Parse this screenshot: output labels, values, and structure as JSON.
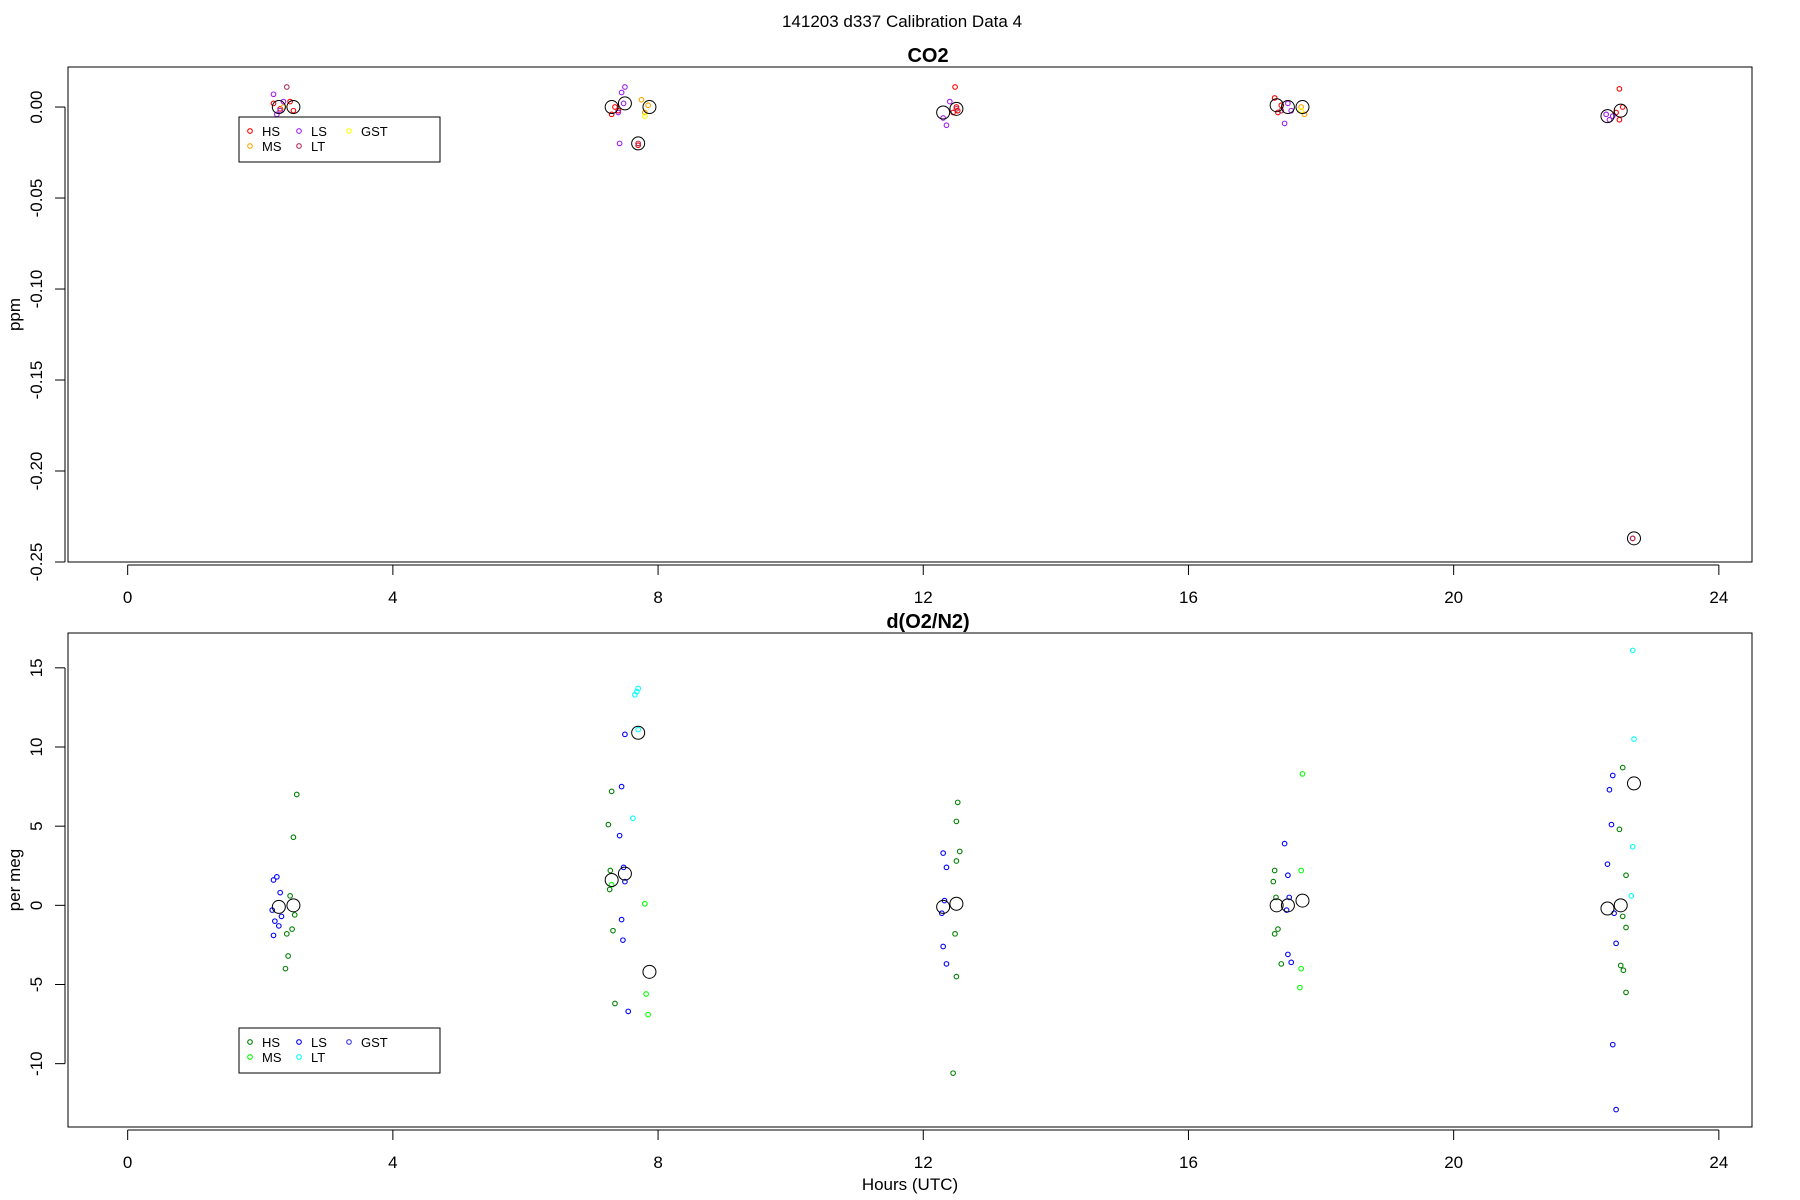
{
  "figure": {
    "suptitle": "141203   d337   Calibration Data 4"
  },
  "chart_data": [
    {
      "type": "scatter",
      "title": "CO2",
      "xlabel": "",
      "ylabel": "ppm",
      "xlim": [
        -0.9,
        24.5
      ],
      "ylim": [
        -0.25,
        0.022
      ],
      "xticks": [
        0,
        4,
        8,
        12,
        16,
        20,
        24
      ],
      "yticks": [
        0.0,
        -0.05,
        -0.1,
        -0.15,
        -0.2,
        -0.25
      ],
      "ytick_labels": [
        "0.00",
        "-0.05",
        "-0.10",
        "-0.15",
        "-0.20",
        "-0.25"
      ],
      "grid": false,
      "legend_position": "top-left",
      "series": [
        {
          "name": "HS",
          "color": "#ff0000",
          "points": [
            [
              2.2,
              0.002
            ],
            [
              2.3,
              -0.001
            ],
            [
              2.5,
              -0.002
            ],
            [
              2.45,
              0.003
            ],
            [
              7.3,
              -0.004
            ],
            [
              7.35,
              0.0
            ],
            [
              7.4,
              -0.002
            ],
            [
              7.7,
              -0.021
            ],
            [
              12.45,
              -0.003
            ],
            [
              12.5,
              0.0
            ],
            [
              12.52,
              -0.002
            ],
            [
              12.48,
              0.011
            ],
            [
              17.3,
              0.005
            ],
            [
              17.35,
              -0.003
            ],
            [
              17.4,
              0.001
            ],
            [
              22.45,
              -0.003
            ],
            [
              22.5,
              -0.007
            ],
            [
              22.55,
              0.0
            ],
            [
              22.5,
              0.01
            ],
            [
              22.7,
              -0.237
            ]
          ]
        },
        {
          "name": "MS",
          "color": "#ffa500",
          "points": [
            [
              2.35,
              0.0
            ],
            [
              7.75,
              0.004
            ],
            [
              7.8,
              -0.003
            ],
            [
              7.85,
              0.001
            ],
            [
              17.7,
              0.0
            ],
            [
              17.75,
              -0.004
            ]
          ]
        },
        {
          "name": "LS",
          "color": "#a020f0",
          "points": [
            [
              2.2,
              0.007
            ],
            [
              2.25,
              -0.004
            ],
            [
              2.3,
              -0.002
            ],
            [
              2.35,
              0.003
            ],
            [
              7.4,
              -0.003
            ],
            [
              7.45,
              0.008
            ],
            [
              7.5,
              0.011
            ],
            [
              7.42,
              -0.02
            ],
            [
              7.48,
              0.002
            ],
            [
              12.3,
              -0.006
            ],
            [
              12.35,
              -0.01
            ],
            [
              12.4,
              0.003
            ],
            [
              17.45,
              -0.009
            ],
            [
              17.5,
              0.002
            ],
            [
              17.55,
              -0.002
            ],
            [
              22.3,
              -0.004
            ],
            [
              22.35,
              -0.007
            ],
            [
              22.4,
              -0.005
            ]
          ]
        },
        {
          "name": "LT",
          "color": "#b0305c",
          "points": [
            [
              2.4,
              0.011
            ],
            [
              7.7,
              -0.02
            ],
            [
              12.5,
              -0.001
            ],
            [
              17.4,
              -0.002
            ],
            [
              22.7,
              -0.237
            ]
          ]
        },
        {
          "name": "GST",
          "color": "#ffff00",
          "points": [
            [
              7.8,
              -0.005
            ],
            [
              17.7,
              -0.002
            ]
          ]
        }
      ],
      "means": [
        [
          2.28,
          0.0
        ],
        [
          2.5,
          0.0
        ],
        [
          7.3,
          0.0
        ],
        [
          7.5,
          0.002
        ],
        [
          7.7,
          -0.02
        ],
        [
          7.87,
          0.0
        ],
        [
          12.3,
          -0.003
        ],
        [
          12.5,
          -0.001
        ],
        [
          17.33,
          0.001
        ],
        [
          17.5,
          0.0
        ],
        [
          17.72,
          0.0
        ],
        [
          22.32,
          -0.005
        ],
        [
          22.52,
          -0.002
        ],
        [
          22.72,
          -0.237
        ]
      ]
    },
    {
      "type": "scatter",
      "title": "d(O2/N2)",
      "xlabel": "Hours (UTC)",
      "ylabel": "per meg",
      "xlim": [
        -0.9,
        24.5
      ],
      "ylim": [
        -14,
        17.2
      ],
      "xticks": [
        0,
        4,
        8,
        12,
        16,
        20,
        24
      ],
      "yticks": [
        15,
        10,
        5,
        0,
        -5,
        -10
      ],
      "ytick_labels": [
        "15",
        "10",
        "5",
        "0",
        "-5",
        "-10"
      ],
      "grid": false,
      "legend_position": "bottom-left",
      "series": [
        {
          "name": "HS",
          "color": "#008000",
          "points": [
            [
              2.45,
              0.6
            ],
            [
              2.5,
              4.3
            ],
            [
              2.55,
              7.0
            ],
            [
              2.42,
              -3.2
            ],
            [
              2.4,
              -1.8
            ],
            [
              2.38,
              -4.0
            ],
            [
              2.48,
              -1.5
            ],
            [
              2.52,
              -0.6
            ],
            [
              7.25,
              5.1
            ],
            [
              7.3,
              7.2
            ],
            [
              7.28,
              2.2
            ],
            [
              7.32,
              -1.6
            ],
            [
              7.35,
              -6.2
            ],
            [
              7.27,
              1.0
            ],
            [
              12.5,
              5.3
            ],
            [
              12.52,
              6.5
            ],
            [
              12.55,
              3.4
            ],
            [
              12.5,
              2.8
            ],
            [
              12.48,
              -1.8
            ],
            [
              12.5,
              -4.5
            ],
            [
              12.45,
              -10.6
            ],
            [
              17.3,
              2.2
            ],
            [
              17.28,
              1.5
            ],
            [
              17.32,
              0.5
            ],
            [
              17.35,
              -1.5
            ],
            [
              17.3,
              -1.8
            ],
            [
              17.4,
              -3.7
            ],
            [
              22.55,
              8.7
            ],
            [
              22.5,
              4.8
            ],
            [
              22.6,
              1.9
            ],
            [
              22.55,
              -0.7
            ],
            [
              22.6,
              -1.4
            ],
            [
              22.52,
              -3.8
            ],
            [
              22.56,
              -4.1
            ],
            [
              22.6,
              -5.5
            ]
          ]
        },
        {
          "name": "MS",
          "color": "#00ff00",
          "points": [
            [
              7.3,
              1.3
            ],
            [
              7.8,
              0.1
            ],
            [
              7.82,
              -5.6
            ],
            [
              7.85,
              -6.9
            ],
            [
              17.72,
              8.3
            ],
            [
              17.7,
              2.2
            ],
            [
              17.7,
              -4.0
            ],
            [
              17.68,
              -5.2
            ]
          ]
        },
        {
          "name": "LS",
          "color": "#0000ff",
          "points": [
            [
              2.2,
              1.6
            ],
            [
              2.25,
              1.8
            ],
            [
              2.3,
              0.8
            ],
            [
              2.18,
              -0.3
            ],
            [
              2.22,
              -1.0
            ],
            [
              2.28,
              -1.3
            ],
            [
              2.2,
              -1.9
            ],
            [
              2.32,
              -0.7
            ],
            [
              7.5,
              10.8
            ],
            [
              7.45,
              7.5
            ],
            [
              7.42,
              4.4
            ],
            [
              7.48,
              2.4
            ],
            [
              7.5,
              1.5
            ],
            [
              7.45,
              -0.9
            ],
            [
              7.47,
              -2.2
            ],
            [
              7.55,
              -6.7
            ],
            [
              12.3,
              3.3
            ],
            [
              12.35,
              2.4
            ],
            [
              12.32,
              0.3
            ],
            [
              12.28,
              -0.5
            ],
            [
              12.3,
              -2.6
            ],
            [
              12.35,
              -3.7
            ],
            [
              17.45,
              3.9
            ],
            [
              17.5,
              1.9
            ],
            [
              17.52,
              0.5
            ],
            [
              17.48,
              -0.3
            ],
            [
              17.5,
              -3.1
            ],
            [
              17.55,
              -3.6
            ],
            [
              22.35,
              7.3
            ],
            [
              22.4,
              8.2
            ],
            [
              22.38,
              5.1
            ],
            [
              22.32,
              2.6
            ],
            [
              22.42,
              -0.5
            ],
            [
              22.45,
              -2.4
            ],
            [
              22.4,
              -8.8
            ],
            [
              22.45,
              -12.9
            ]
          ]
        },
        {
          "name": "LT",
          "color": "#00ffff",
          "points": [
            [
              7.65,
              13.3
            ],
            [
              7.7,
              13.7
            ],
            [
              7.68,
              13.5
            ],
            [
              7.62,
              5.5
            ],
            [
              7.7,
              11.1
            ],
            [
              22.7,
              16.1
            ],
            [
              22.72,
              10.5
            ],
            [
              22.7,
              3.7
            ],
            [
              22.68,
              0.6
            ]
          ]
        },
        {
          "name": "GST",
          "color": "#3a3ad8",
          "points": []
        }
      ],
      "means": [
        [
          2.28,
          -0.1
        ],
        [
          2.5,
          0.0
        ],
        [
          7.3,
          1.6
        ],
        [
          7.5,
          2.0
        ],
        [
          7.7,
          10.9
        ],
        [
          7.87,
          -4.2
        ],
        [
          12.3,
          -0.1
        ],
        [
          12.5,
          0.1
        ],
        [
          17.33,
          0.0
        ],
        [
          17.5,
          0.0
        ],
        [
          17.72,
          0.3
        ],
        [
          22.32,
          -0.2
        ],
        [
          22.52,
          0.0
        ],
        [
          22.72,
          7.7
        ]
      ]
    }
  ]
}
